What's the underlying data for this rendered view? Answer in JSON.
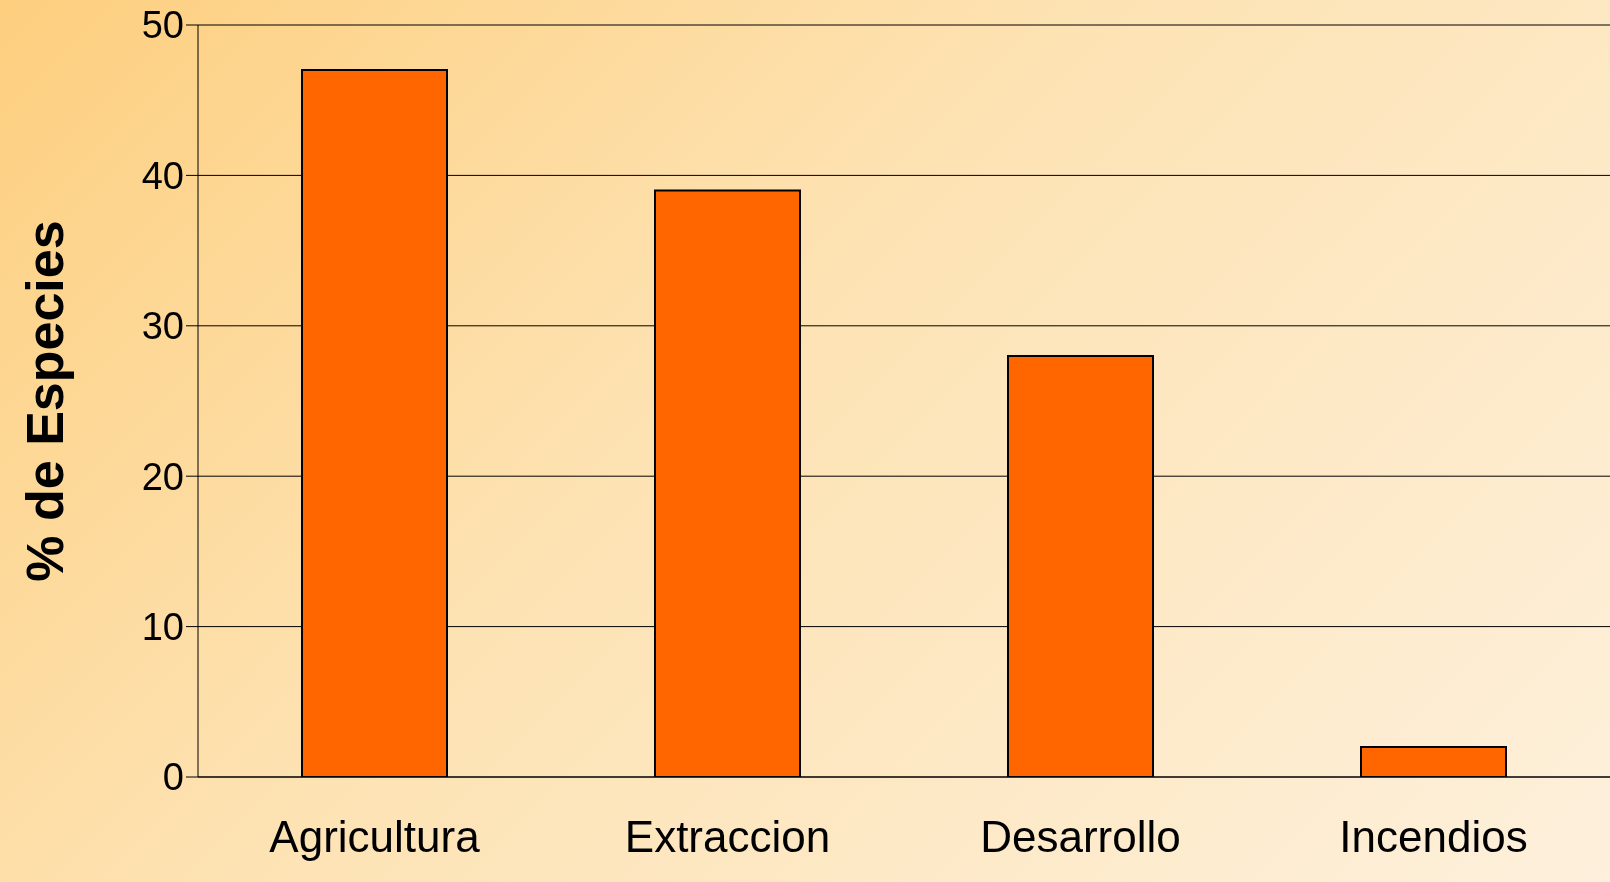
{
  "chart_data": {
    "type": "bar",
    "ylabel": "% de Especies",
    "categories": [
      "Agricultura",
      "Extraccion",
      "Desarrollo",
      "Incendios"
    ],
    "values": [
      47,
      39,
      28,
      2
    ],
    "color": "#ff6600",
    "ylim": [
      0,
      50
    ],
    "yticks": [
      0,
      10,
      20,
      30,
      40,
      50
    ],
    "grid": "y"
  }
}
